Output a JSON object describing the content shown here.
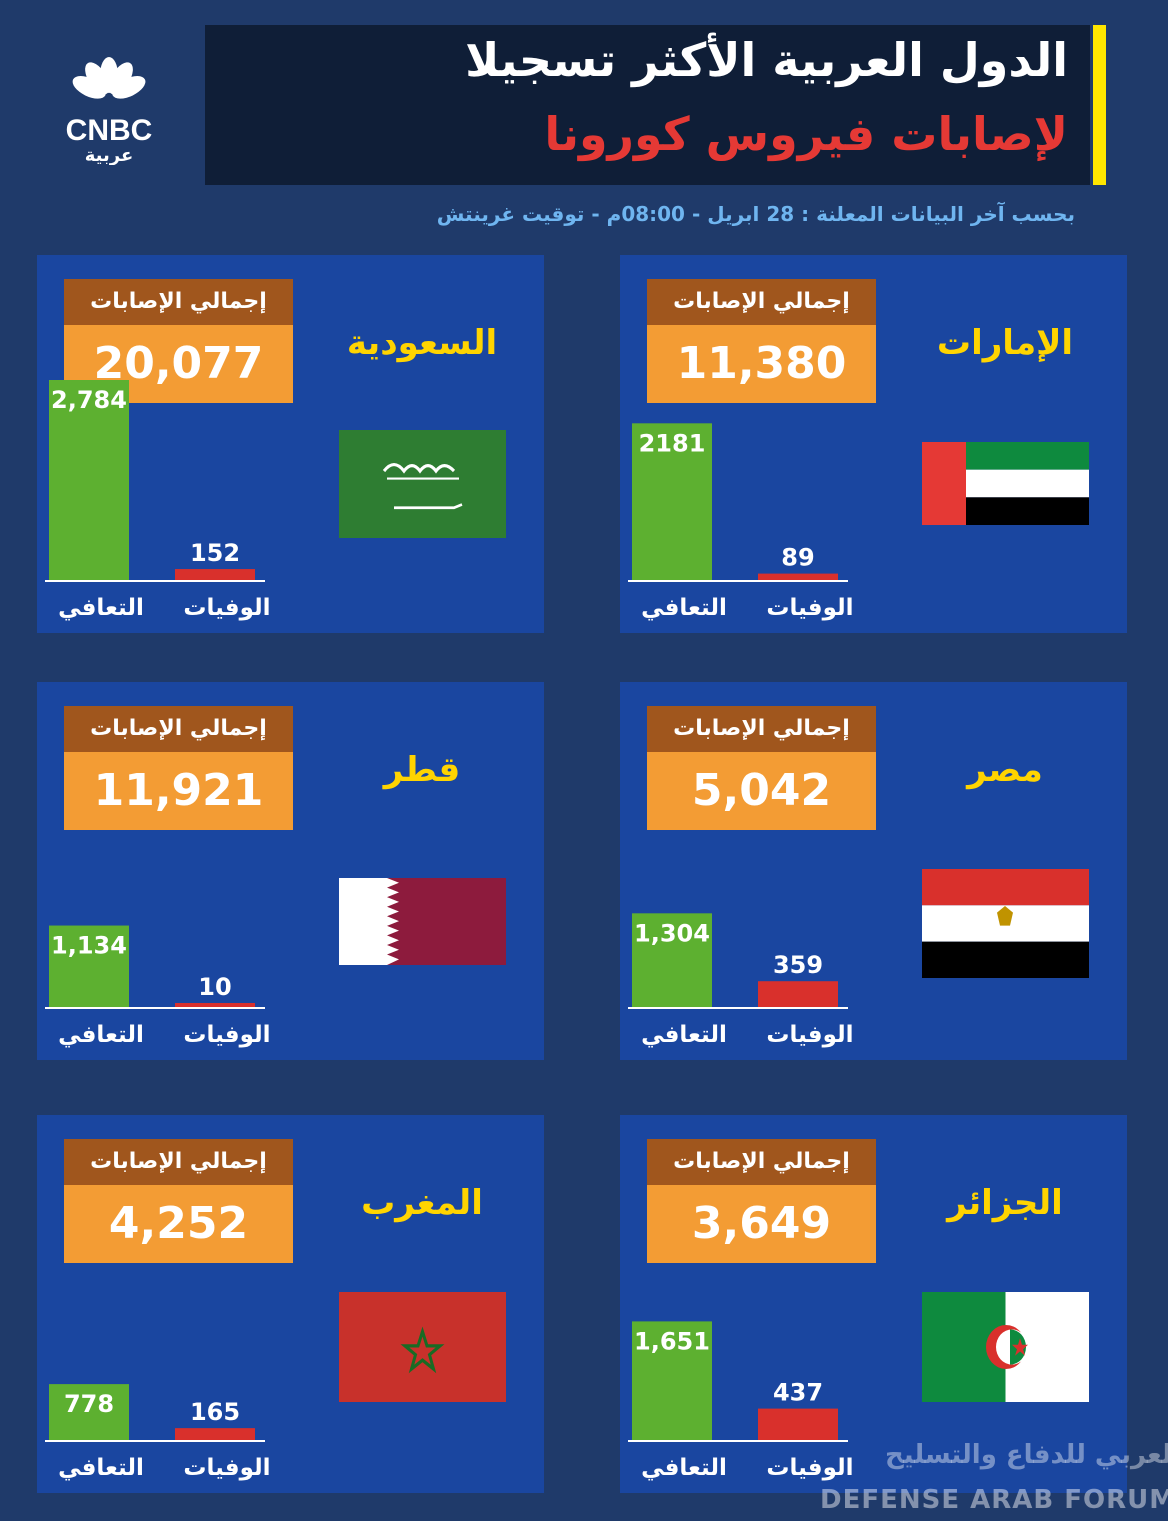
{
  "header": {
    "logo_text": "CNBC",
    "logo_sub": "عربية",
    "title_line1": "الدول العربية الأكثر تسجيلا",
    "title_line2": "لإصابات فيروس كورونا",
    "subtitle": "بحسب آخر البيانات المعلنة : 28 ابريل - 08:00م - توقيت غرينتش"
  },
  "labels": {
    "total": "إجمالي الإصابات",
    "recovered": "التعافي",
    "deaths": "الوفيات"
  },
  "chart_data": [
    {
      "type": "bar",
      "country": "الإمارات",
      "total": "11,380",
      "categories": [
        "التعافي",
        "الوفيات"
      ],
      "values": [
        2181,
        89
      ],
      "data_labels": [
        "2181",
        "89"
      ],
      "flag": "uae"
    },
    {
      "type": "bar",
      "country": "السعودية",
      "total": "20,077",
      "categories": [
        "التعافي",
        "الوفيات"
      ],
      "values": [
        2784,
        152
      ],
      "data_labels": [
        "2,784",
        "152"
      ],
      "flag": "saudi"
    },
    {
      "type": "bar",
      "country": "مصر",
      "total": "5,042",
      "categories": [
        "التعافي",
        "الوفيات"
      ],
      "values": [
        1304,
        359
      ],
      "data_labels": [
        "1,304",
        "359"
      ],
      "flag": "egypt"
    },
    {
      "type": "bar",
      "country": "قطر",
      "total": "11,921",
      "categories": [
        "التعافي",
        "الوفيات"
      ],
      "values": [
        1134,
        10
      ],
      "data_labels": [
        "1,134",
        "10"
      ],
      "flag": "qatar"
    },
    {
      "type": "bar",
      "country": "الجزائر",
      "total": "3,649",
      "categories": [
        "التعافي",
        "الوفيات"
      ],
      "values": [
        1651,
        437
      ],
      "data_labels": [
        "1,651",
        "437"
      ],
      "flag": "algeria"
    },
    {
      "type": "bar",
      "country": "المغرب",
      "total": "4,252",
      "categories": [
        "التعافي",
        "الوفيات"
      ],
      "values": [
        778,
        165
      ],
      "data_labels": [
        "778",
        "165"
      ],
      "flag": "morocco"
    }
  ],
  "colors": {
    "background": "#1f3a6a",
    "panel": "#1a46a0",
    "recovered_bar": "#5db030",
    "deaths_bar": "#d9302c",
    "total_label_bg": "#a0561d",
    "total_value_bg": "#f39c34",
    "country_text": "#ffd400"
  },
  "watermark": {
    "en": "DEFENSE ARAB FORUM",
    "ar": "المنتدى العربي للدفاع والتسليح"
  }
}
